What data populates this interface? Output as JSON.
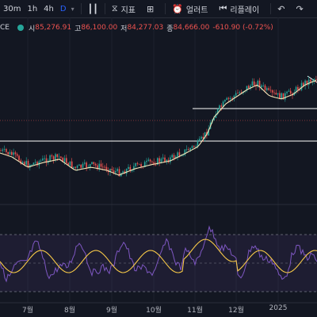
{
  "toolbar": {
    "timeframes": [
      "30m",
      "1h",
      "4h",
      "D"
    ],
    "active_timeframe": "D",
    "indicators_label": "지표",
    "alert_label": "얼러트",
    "replay_label": "리플레이"
  },
  "legend": {
    "symbol_suffix": "CE",
    "open_label": "시",
    "open": "85,276.91",
    "high_label": "고",
    "high": "86,100.00",
    "low_label": "저",
    "low": "84,277.03",
    "close_label": "종",
    "close": "84,666.00",
    "change": "-610.90 (-0.72%)"
  },
  "x_axis_labels": [
    "7월",
    "8월",
    "9월",
    "10월",
    "11월",
    "12월",
    "2025"
  ],
  "colors": {
    "up": "#26a69a",
    "down": "#ef5350",
    "ma": "#f5e6b8",
    "rsi": "#7e57c2",
    "rsi_ma": "#f7c948",
    "background": "#131722"
  }
}
